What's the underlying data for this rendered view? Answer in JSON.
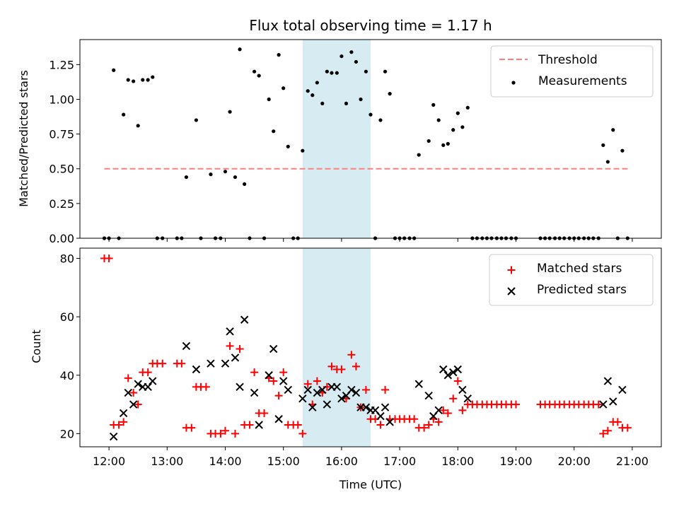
{
  "chart_data": [
    {
      "type": "scatter",
      "title": "Flux total observing time = 1.17 h",
      "xlabel": "",
      "ylabel": "Matched/Predicted stars",
      "xlim": [
        11.5,
        21.5
      ],
      "ylim": [
        0,
        1.43
      ],
      "yticks": [
        0.0,
        0.25,
        0.5,
        0.75,
        1.0,
        1.25
      ],
      "ytick_labels": [
        "0.00",
        "0.25",
        "0.50",
        "0.75",
        "1.00",
        "1.25"
      ],
      "highlight_span": [
        15.33,
        16.5
      ],
      "highlight_color": "#add8e6",
      "legend": {
        "location": "upper-right",
        "entries": [
          "Threshold",
          "Measurements"
        ]
      },
      "threshold": {
        "name": "Threshold",
        "value": 0.5,
        "x_range": [
          11.92,
          20.92
        ],
        "color": "#ff7f7f"
      },
      "series": [
        {
          "name": "Measurements",
          "marker": "dot",
          "color": "#000000",
          "points": [
            [
              11.92,
              0
            ],
            [
              12.0,
              0
            ],
            [
              12.08,
              1.21
            ],
            [
              12.17,
              0
            ],
            [
              12.25,
              0.89
            ],
            [
              12.33,
              1.14
            ],
            [
              12.42,
              1.13
            ],
            [
              12.5,
              0.81
            ],
            [
              12.58,
              1.14
            ],
            [
              12.67,
              1.14
            ],
            [
              12.75,
              1.16
            ],
            [
              12.83,
              0
            ],
            [
              12.92,
              0
            ],
            [
              13.17,
              0
            ],
            [
              13.25,
              0
            ],
            [
              13.33,
              0.44
            ],
            [
              13.5,
              0.85
            ],
            [
              13.58,
              0
            ],
            [
              13.75,
              0.46
            ],
            [
              13.83,
              0
            ],
            [
              13.92,
              0
            ],
            [
              14.0,
              0.48
            ],
            [
              14.08,
              0.91
            ],
            [
              14.17,
              0.44
            ],
            [
              14.25,
              1.36
            ],
            [
              14.33,
              0.39
            ],
            [
              14.42,
              0
            ],
            [
              14.5,
              1.2
            ],
            [
              14.58,
              1.17
            ],
            [
              14.67,
              0
            ],
            [
              14.75,
              1.0
            ],
            [
              14.83,
              0.77
            ],
            [
              14.92,
              1.32
            ],
            [
              15.0,
              1.08
            ],
            [
              15.08,
              0.66
            ],
            [
              15.17,
              0
            ],
            [
              15.25,
              0
            ],
            [
              15.33,
              0.63
            ],
            [
              15.42,
              1.06
            ],
            [
              15.5,
              1.03
            ],
            [
              15.58,
              1.12
            ],
            [
              15.67,
              0.97
            ],
            [
              15.75,
              1.2
            ],
            [
              15.83,
              1.19
            ],
            [
              15.92,
              1.19
            ],
            [
              16.0,
              1.31
            ],
            [
              16.08,
              0.97
            ],
            [
              16.17,
              1.34
            ],
            [
              16.25,
              1.27
            ],
            [
              16.33,
              1.0
            ],
            [
              16.42,
              1.2
            ],
            [
              16.5,
              0.89
            ],
            [
              16.58,
              0
            ],
            [
              16.67,
              0.85
            ],
            [
              16.75,
              1.2
            ],
            [
              16.83,
              1.04
            ],
            [
              16.92,
              0
            ],
            [
              17.0,
              0
            ],
            [
              17.08,
              0
            ],
            [
              17.17,
              0
            ],
            [
              17.25,
              0
            ],
            [
              17.33,
              0.6
            ],
            [
              17.5,
              0.7
            ],
            [
              17.58,
              0.96
            ],
            [
              17.67,
              0.85
            ],
            [
              17.75,
              0.67
            ],
            [
              17.83,
              0.68
            ],
            [
              17.92,
              0.78
            ],
            [
              18.0,
              0.9
            ],
            [
              18.08,
              0.8
            ],
            [
              18.17,
              0.94
            ],
            [
              18.25,
              0
            ],
            [
              18.33,
              0
            ],
            [
              18.42,
              0
            ],
            [
              18.5,
              0
            ],
            [
              18.58,
              0
            ],
            [
              18.67,
              0
            ],
            [
              18.75,
              0
            ],
            [
              18.83,
              0
            ],
            [
              18.92,
              0
            ],
            [
              19.0,
              0
            ],
            [
              19.42,
              0
            ],
            [
              19.5,
              0
            ],
            [
              19.58,
              0
            ],
            [
              19.67,
              0
            ],
            [
              19.75,
              0
            ],
            [
              19.83,
              0
            ],
            [
              19.92,
              0
            ],
            [
              20.0,
              0
            ],
            [
              20.08,
              0
            ],
            [
              20.17,
              0
            ],
            [
              20.25,
              0
            ],
            [
              20.33,
              0
            ],
            [
              20.42,
              0
            ],
            [
              20.5,
              0.67
            ],
            [
              20.58,
              0.55
            ],
            [
              20.67,
              0.78
            ],
            [
              20.75,
              0
            ],
            [
              20.83,
              0.63
            ],
            [
              20.92,
              0
            ]
          ]
        }
      ]
    },
    {
      "type": "scatter",
      "title": "",
      "xlabel": "Time (UTC)",
      "ylabel": "Count",
      "xlim": [
        11.5,
        21.5
      ],
      "ylim": [
        15.5,
        83.5
      ],
      "xticks": [
        12,
        13,
        14,
        15,
        16,
        17,
        18,
        19,
        20,
        21
      ],
      "xtick_labels": [
        "12:00",
        "13:00",
        "14:00",
        "15:00",
        "16:00",
        "17:00",
        "18:00",
        "19:00",
        "20:00",
        "21:00"
      ],
      "yticks": [
        20,
        40,
        60,
        80
      ],
      "ytick_labels": [
        "20",
        "40",
        "60",
        "80"
      ],
      "highlight_span": [
        15.33,
        16.5
      ],
      "highlight_color": "#add8e6",
      "legend": {
        "location": "upper-right",
        "entries": [
          "Matched stars",
          "Predicted stars"
        ]
      },
      "series": [
        {
          "name": "Matched stars",
          "marker": "plus",
          "color": "#ff0000",
          "points": [
            [
              11.92,
              80
            ],
            [
              12.0,
              80
            ],
            [
              12.08,
              23
            ],
            [
              12.17,
              23
            ],
            [
              12.25,
              24
            ],
            [
              12.33,
              39
            ],
            [
              12.42,
              34
            ],
            [
              12.5,
              30
            ],
            [
              12.58,
              41
            ],
            [
              12.67,
              41
            ],
            [
              12.75,
              44
            ],
            [
              12.83,
              44
            ],
            [
              12.92,
              44
            ],
            [
              13.17,
              44
            ],
            [
              13.25,
              44
            ],
            [
              13.33,
              22
            ],
            [
              13.42,
              22
            ],
            [
              13.5,
              36
            ],
            [
              13.58,
              36
            ],
            [
              13.67,
              36
            ],
            [
              13.75,
              20
            ],
            [
              13.83,
              20
            ],
            [
              13.92,
              20
            ],
            [
              14.0,
              21
            ],
            [
              14.08,
              50
            ],
            [
              14.17,
              20
            ],
            [
              14.25,
              49
            ],
            [
              14.33,
              23
            ],
            [
              14.42,
              23
            ],
            [
              14.5,
              41
            ],
            [
              14.58,
              27
            ],
            [
              14.67,
              27
            ],
            [
              14.75,
              39
            ],
            [
              14.83,
              38
            ],
            [
              14.92,
              33
            ],
            [
              15.0,
              41
            ],
            [
              15.08,
              23
            ],
            [
              15.17,
              23
            ],
            [
              15.25,
              23
            ],
            [
              15.33,
              20
            ],
            [
              15.42,
              37
            ],
            [
              15.5,
              30
            ],
            [
              15.58,
              38
            ],
            [
              15.67,
              34
            ],
            [
              15.75,
              36
            ],
            [
              15.83,
              43
            ],
            [
              15.92,
              42
            ],
            [
              16.0,
              42
            ],
            [
              16.08,
              32
            ],
            [
              16.17,
              47
            ],
            [
              16.25,
              43
            ],
            [
              16.33,
              29
            ],
            [
              16.42,
              35
            ],
            [
              16.5,
              25
            ],
            [
              16.58,
              25
            ],
            [
              16.67,
              23
            ],
            [
              16.75,
              35
            ],
            [
              16.83,
              25
            ],
            [
              16.92,
              25
            ],
            [
              17.0,
              25
            ],
            [
              17.08,
              25
            ],
            [
              17.17,
              25
            ],
            [
              17.25,
              25
            ],
            [
              17.33,
              22
            ],
            [
              17.42,
              22
            ],
            [
              17.5,
              23
            ],
            [
              17.58,
              25
            ],
            [
              17.67,
              24
            ],
            [
              17.75,
              28
            ],
            [
              17.83,
              27
            ],
            [
              17.92,
              32
            ],
            [
              18.0,
              38
            ],
            [
              18.08,
              28
            ],
            [
              18.17,
              30
            ],
            [
              18.25,
              30
            ],
            [
              18.33,
              30
            ],
            [
              18.42,
              30
            ],
            [
              18.5,
              30
            ],
            [
              18.58,
              30
            ],
            [
              18.67,
              30
            ],
            [
              18.75,
              30
            ],
            [
              18.83,
              30
            ],
            [
              18.92,
              30
            ],
            [
              19.0,
              30
            ],
            [
              19.42,
              30
            ],
            [
              19.5,
              30
            ],
            [
              19.58,
              30
            ],
            [
              19.67,
              30
            ],
            [
              19.75,
              30
            ],
            [
              19.83,
              30
            ],
            [
              19.92,
              30
            ],
            [
              20.0,
              30
            ],
            [
              20.08,
              30
            ],
            [
              20.17,
              30
            ],
            [
              20.25,
              30
            ],
            [
              20.33,
              30
            ],
            [
              20.42,
              30
            ],
            [
              20.5,
              20
            ],
            [
              20.58,
              21
            ],
            [
              20.67,
              24
            ],
            [
              20.75,
              24
            ],
            [
              20.83,
              22
            ],
            [
              20.92,
              22
            ]
          ]
        },
        {
          "name": "Predicted stars",
          "marker": "x",
          "color": "#000000",
          "points": [
            [
              12.08,
              19
            ],
            [
              12.25,
              27
            ],
            [
              12.33,
              34
            ],
            [
              12.42,
              30
            ],
            [
              12.5,
              37
            ],
            [
              12.58,
              36
            ],
            [
              12.67,
              36
            ],
            [
              12.75,
              38
            ],
            [
              13.33,
              50
            ],
            [
              13.5,
              42
            ],
            [
              13.75,
              44
            ],
            [
              14.0,
              44
            ],
            [
              14.08,
              55
            ],
            [
              14.17,
              46
            ],
            [
              14.25,
              36
            ],
            [
              14.33,
              59
            ],
            [
              14.5,
              34
            ],
            [
              14.58,
              23
            ],
            [
              14.75,
              40
            ],
            [
              14.83,
              49
            ],
            [
              14.92,
              25
            ],
            [
              15.0,
              38
            ],
            [
              15.08,
              35
            ],
            [
              15.33,
              32
            ],
            [
              15.42,
              35
            ],
            [
              15.5,
              29
            ],
            [
              15.58,
              34
            ],
            [
              15.67,
              35
            ],
            [
              15.75,
              30
            ],
            [
              15.83,
              36
            ],
            [
              15.92,
              36
            ],
            [
              16.0,
              32
            ],
            [
              16.08,
              33
            ],
            [
              16.17,
              35
            ],
            [
              16.25,
              34
            ],
            [
              16.33,
              29
            ],
            [
              16.42,
              29
            ],
            [
              16.5,
              28
            ],
            [
              16.58,
              28
            ],
            [
              16.67,
              26
            ],
            [
              16.75,
              29
            ],
            [
              16.83,
              24
            ],
            [
              17.33,
              37
            ],
            [
              17.5,
              33
            ],
            [
              17.58,
              26
            ],
            [
              17.67,
              28
            ],
            [
              17.75,
              42
            ],
            [
              17.83,
              40
            ],
            [
              17.92,
              41
            ],
            [
              18.0,
              42
            ],
            [
              18.08,
              35
            ],
            [
              18.17,
              32
            ],
            [
              20.5,
              30
            ],
            [
              20.58,
              38
            ],
            [
              20.67,
              31
            ],
            [
              20.83,
              35
            ]
          ]
        }
      ]
    }
  ]
}
